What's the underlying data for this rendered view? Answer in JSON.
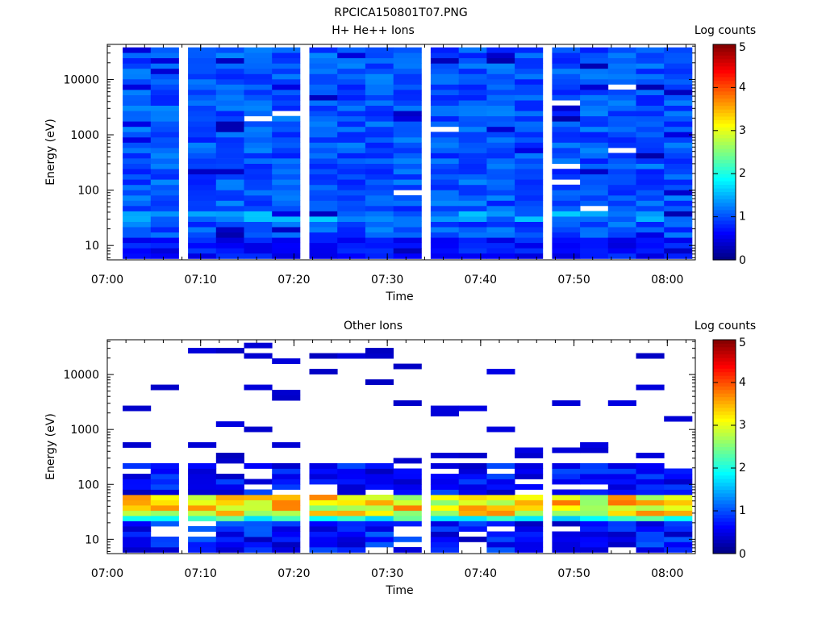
{
  "figure_title": "RPCICA150801T07.PNG",
  "colors": {
    "axis": "#000000",
    "background": "#ffffff"
  },
  "chart_data": [
    {
      "type": "heatmap",
      "title": "H+ He++ Ions",
      "xlabel": "Time",
      "ylabel": "Energy (eV)",
      "x_ticks": [
        "07:00",
        "07:10",
        "07:20",
        "07:30",
        "07:40",
        "07:50",
        "08:00"
      ],
      "xlim": [
        "07:00",
        "08:03"
      ],
      "y_ticks": [
        10,
        100,
        1000,
        10000
      ],
      "y_scale": "log",
      "ylim": [
        5.5,
        43000
      ],
      "colorbar": {
        "label": "Log counts",
        "ticks": [
          0,
          1,
          2,
          3,
          4,
          5
        ],
        "range": [
          0,
          5
        ],
        "colormap": "jet"
      },
      "time_columns": [
        "07:03",
        "07:06",
        "07:10",
        "07:13",
        "07:16",
        "07:19",
        "07:23",
        "07:26",
        "07:29",
        "07:32",
        "07:36",
        "07:39",
        "07:42",
        "07:45",
        "07:49",
        "07:52",
        "07:55",
        "07:58",
        "08:01"
      ],
      "energy_bins": 40,
      "profile": "flux roughly log 0.7-1.4 counts at all energies, lower near 10 eV, enhanced band near 30 eV"
    },
    {
      "type": "heatmap",
      "title": "Other Ions",
      "xlabel": "Time",
      "ylabel": "Energy (eV)",
      "x_ticks": [
        "07:00",
        "07:10",
        "07:20",
        "07:30",
        "07:40",
        "07:50",
        "08:00"
      ],
      "xlim": [
        "07:00",
        "08:03"
      ],
      "y_ticks": [
        10,
        100,
        1000,
        10000
      ],
      "y_scale": "log",
      "ylim": [
        5.5,
        43000
      ],
      "colorbar": {
        "label": "Log counts",
        "ticks": [
          0,
          1,
          2,
          3,
          4,
          5
        ],
        "range": [
          0,
          5
        ],
        "colormap": "jet"
      },
      "time_columns": [
        "07:03",
        "07:06",
        "07:10",
        "07:13",
        "07:16",
        "07:19",
        "07:23",
        "07:26",
        "07:29",
        "07:32",
        "07:36",
        "07:39",
        "07:42",
        "07:45",
        "07:49",
        "07:52",
        "07:55",
        "07:58",
        "08:01"
      ],
      "energy_bins": 40,
      "profile": "sparse low counts above 250 eV, dense near 1 below 200 eV, peak band about 3-3.5 log counts at 30-50 eV"
    }
  ]
}
